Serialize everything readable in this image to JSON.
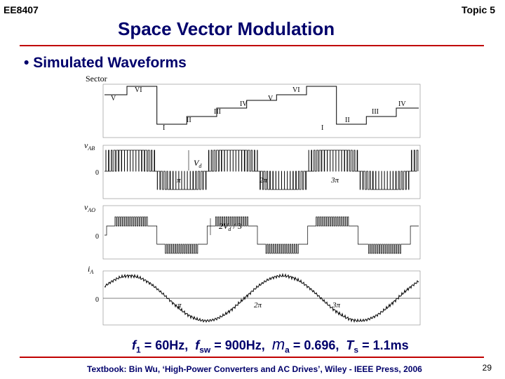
{
  "header": {
    "course": "EE8407",
    "topic": "Topic 5",
    "title": "Space Vector Modulation"
  },
  "bullet": "Simulated Waveforms",
  "figure": {
    "sector_label": "Sector",
    "sector_roman": [
      "V",
      "VI",
      "I",
      "II",
      "III",
      "IV",
      "V",
      "VI",
      "I",
      "II",
      "III",
      "IV"
    ],
    "vab_label": "v",
    "vab_sub": "AB",
    "vd_label": "V",
    "vd_sub": "d",
    "vao_label": "v",
    "vao_sub": "AO",
    "vao_level": "2V",
    "vao_level_sub": "d",
    "vao_level_tail": " / 3",
    "ia_label": "i",
    "ia_sub": "A",
    "zero": "0",
    "pi": "π",
    "two_pi": "2π",
    "three_pi": "3π"
  },
  "caption": {
    "f1_sym": "f",
    "f1_sub": "1",
    "f1_val": " = 60Hz,  ",
    "fsw_sym": "f",
    "fsw_sub": "sw",
    "fsw_val": " = 900Hz,  ",
    "ma_sym": "m",
    "ma_sub": "a",
    "ma_val": " = 0.696,  ",
    "ts_sym": "T",
    "ts_sub": "s",
    "ts_val": " = 1.1ms"
  },
  "footer": {
    "source": "Textbook: Bin Wu, ‘High-Power Converters and AC Drives’, Wiley - IEEE Press, 2006",
    "page": "29"
  }
}
